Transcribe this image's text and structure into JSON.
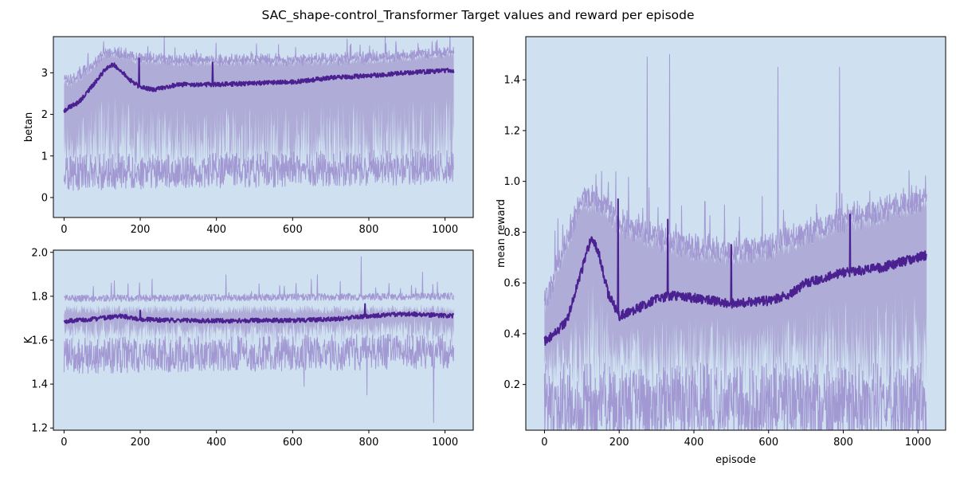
{
  "figure": {
    "title": "SAC_shape-control_Transformer Target values and reward per episode"
  },
  "colors": {
    "background": "#cfe0f1",
    "mean_line": "#4b2191",
    "band_fill": "#a49ccf",
    "extreme_line": "#9a8bcc"
  },
  "chart_data": [
    {
      "type": "line",
      "id": "betan",
      "xlabel": "",
      "ylabel": "betan",
      "xlim": [
        -28,
        1074
      ],
      "ylim": [
        -0.48,
        3.87
      ],
      "xticks": [
        0,
        200,
        400,
        600,
        800,
        1000
      ],
      "yticks": [
        0,
        1,
        2,
        3
      ],
      "episodes": 1024,
      "mean_profile": {
        "x": [
          0,
          10,
          40,
          80,
          110,
          130,
          150,
          170,
          200,
          240,
          300,
          400,
          500,
          600,
          700,
          800,
          900,
          1000,
          1024
        ],
        "y": [
          2.08,
          2.15,
          2.3,
          2.75,
          3.1,
          3.2,
          3.05,
          2.85,
          2.65,
          2.6,
          2.72,
          2.72,
          2.75,
          2.78,
          2.88,
          2.93,
          3.0,
          3.05,
          3.06
        ]
      },
      "mean_spikes": [
        {
          "x": 197,
          "y": 3.35
        },
        {
          "x": 390,
          "y": 3.25
        }
      ],
      "upper_profile": {
        "x": [
          0,
          20,
          60,
          100,
          130,
          200,
          300,
          400,
          600,
          800,
          1024
        ],
        "y": [
          2.8,
          2.75,
          3.0,
          3.35,
          3.45,
          3.3,
          3.25,
          3.25,
          3.25,
          3.3,
          3.45
        ]
      },
      "lower_profile": {
        "x": [
          0,
          1024
        ],
        "y": [
          1.0,
          1.0
        ]
      },
      "min_line": {
        "x": [
          0,
          1024
        ],
        "y": [
          0.6,
          0.75
        ]
      },
      "max_spikes": [
        {
          "x": 505,
          "y": 3.7
        },
        {
          "x": 845,
          "y": 3.7
        }
      ]
    },
    {
      "type": "line",
      "id": "K",
      "xlabel": "",
      "ylabel": "K",
      "xlim": [
        -28,
        1074
      ],
      "ylim": [
        1.19,
        2.01
      ],
      "xticks": [
        0,
        200,
        400,
        600,
        800,
        1000
      ],
      "yticks": [
        1.2,
        1.4,
        1.6,
        1.8,
        2.0
      ],
      "episodes": 1024,
      "mean_profile": {
        "x": [
          0,
          100,
          150,
          200,
          300,
          400,
          500,
          600,
          700,
          800,
          900,
          1024
        ],
        "y": [
          1.685,
          1.7,
          1.71,
          1.695,
          1.69,
          1.688,
          1.69,
          1.69,
          1.695,
          1.71,
          1.72,
          1.71
        ]
      },
      "mean_spikes": [
        {
          "x": 790,
          "y": 1.765
        },
        {
          "x": 200,
          "y": 1.735
        }
      ],
      "upper_profile": {
        "x": [
          0,
          1024
        ],
        "y": [
          1.74,
          1.74
        ]
      },
      "lower_profile": {
        "x": [
          0,
          1024
        ],
        "y": [
          1.63,
          1.63
        ]
      },
      "min_line": {
        "x": [
          0,
          1024
        ],
        "y": [
          1.53,
          1.55
        ]
      },
      "max_line": {
        "x": [
          0,
          1024
        ],
        "y": [
          1.79,
          1.8
        ]
      },
      "max_spikes": [
        {
          "x": 780,
          "y": 1.98
        }
      ],
      "min_spikes": [
        {
          "x": 970,
          "y": 1.225
        },
        {
          "x": 795,
          "y": 1.35
        },
        {
          "x": 630,
          "y": 1.39
        }
      ]
    },
    {
      "type": "line",
      "id": "reward",
      "xlabel": "episode",
      "ylabel": "mean reward",
      "xlim": [
        -50,
        1074
      ],
      "ylim": [
        0.02,
        1.57
      ],
      "xticks": [
        0,
        200,
        400,
        600,
        800,
        1000
      ],
      "yticks": [
        0.2,
        0.4,
        0.6,
        0.8,
        1.0,
        1.2,
        1.4
      ],
      "episodes": 1024,
      "mean_profile": {
        "x": [
          0,
          20,
          60,
          100,
          125,
          145,
          170,
          200,
          250,
          300,
          350,
          400,
          500,
          600,
          650,
          700,
          800,
          900,
          950,
          1000,
          1024
        ],
        "y": [
          0.37,
          0.39,
          0.45,
          0.65,
          0.78,
          0.72,
          0.56,
          0.47,
          0.5,
          0.54,
          0.55,
          0.54,
          0.52,
          0.53,
          0.55,
          0.6,
          0.64,
          0.66,
          0.68,
          0.7,
          0.71
        ]
      },
      "mean_spikes": [
        {
          "x": 197,
          "y": 0.93
        },
        {
          "x": 330,
          "y": 0.85
        },
        {
          "x": 818,
          "y": 0.87
        },
        {
          "x": 500,
          "y": 0.75
        }
      ],
      "upper_profile": {
        "x": [
          0,
          60,
          100,
          150,
          200,
          300,
          400,
          500,
          600,
          700,
          800,
          900,
          1024
        ],
        "y": [
          0.5,
          0.75,
          0.92,
          0.9,
          0.82,
          0.76,
          0.72,
          0.7,
          0.72,
          0.78,
          0.83,
          0.86,
          0.92
        ]
      },
      "lower_profile": {
        "x": [
          0,
          1024
        ],
        "y": [
          0.27,
          0.27
        ]
      },
      "min_line": {
        "x": [
          0,
          1024
        ],
        "y": [
          0.13,
          0.13
        ]
      },
      "max_spikes": [
        {
          "x": 275,
          "y": 1.49
        },
        {
          "x": 335,
          "y": 1.5
        },
        {
          "x": 625,
          "y": 1.45
        },
        {
          "x": 790,
          "y": 1.45
        }
      ]
    }
  ]
}
